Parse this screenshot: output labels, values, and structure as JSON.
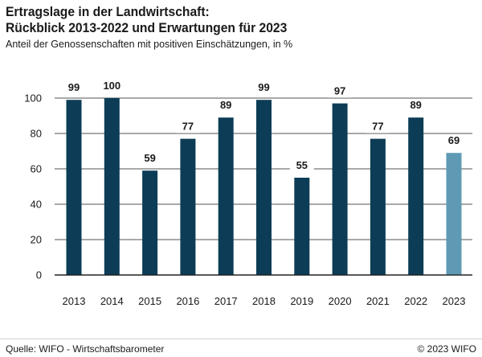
{
  "chart_data": {
    "type": "bar",
    "title_line1": "Ertragslage in der Landwirtschaft:",
    "title_line2": "Rückblick 2013-2022 und Erwartungen für 2023",
    "subtitle": "Anteil der Genossenschaften mit positiven Einschätzungen, in %",
    "categories": [
      "2013",
      "2014",
      "2015",
      "2016",
      "2017",
      "2018",
      "2019",
      "2020",
      "2021",
      "2022",
      "2023"
    ],
    "values": [
      99,
      100,
      59,
      77,
      89,
      99,
      55,
      97,
      77,
      89,
      69
    ],
    "value_labels": [
      "99",
      "100",
      "59",
      "77",
      "89",
      "99",
      "55",
      "97",
      "77",
      "89",
      "69"
    ],
    "highlight_index": 10,
    "ylim": [
      0,
      100
    ],
    "yticks": [
      0,
      20,
      40,
      60,
      80,
      100
    ],
    "xlabel": "",
    "ylabel": "",
    "grid": true,
    "colors": {
      "bar": "#0d3d56",
      "highlight": "#5e9ab4",
      "grid": "#1a1a1a"
    }
  },
  "footer": {
    "source": "Quelle: WIFO - Wirtschaftsbarometer",
    "copyright": "© 2023 WIFO"
  }
}
